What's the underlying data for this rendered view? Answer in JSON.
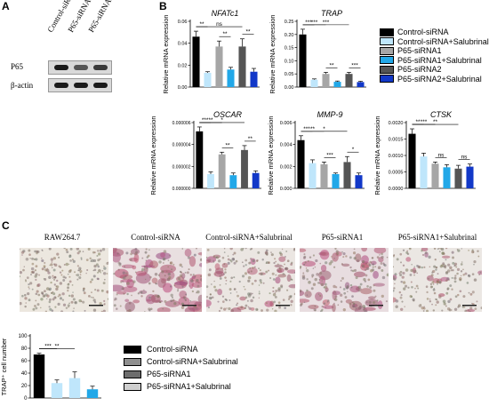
{
  "panels": {
    "a": "A",
    "b": "B",
    "c": "C"
  },
  "blot": {
    "lanes": [
      "Control-siRNA",
      "P65-siRNA1",
      "P65-siRNA2"
    ],
    "rows": [
      "P65",
      "β-actin"
    ]
  },
  "legend_b": [
    {
      "label": "Control-siRNA",
      "color": "#000000"
    },
    {
      "label": "Control-siRNA+Salubrinal",
      "color": "#bfe6fb"
    },
    {
      "label": "P65-siRNA1",
      "color": "#a6a6a6"
    },
    {
      "label": "P65-siRNA1+Salubrinal",
      "color": "#22a8e8"
    },
    {
      "label": "P65-siRNA2",
      "color": "#555555"
    },
    {
      "label": "P65-siRNA2+Salubrinal",
      "color": "#1238c8"
    }
  ],
  "micro_titles": [
    "RAW264.7",
    "Control-siRNA",
    "Control-siRNA+Salubrinal",
    "P65-siRNA1",
    "P65-siRNA1+Salubrinal"
  ],
  "legend_c": [
    {
      "label": "Control-siRNA",
      "color": "#000000"
    },
    {
      "label": "Control-siRNA+Salubrinal",
      "color": "#8f8f8f"
    },
    {
      "label": "P65-siRNA1",
      "color": "#6d6d6d"
    },
    {
      "label": "P65-siRNA1+Salubrinal",
      "color": "#cfcfcf"
    }
  ],
  "chart_data": [
    {
      "type": "bar",
      "title": "NFATc1",
      "ylabel": "Relative mRNA expression",
      "ylim": [
        0,
        0.06
      ],
      "yticks": [
        "0.00",
        "0.02",
        "0.04",
        "0.06"
      ],
      "categories": [
        "Control-siRNA",
        "Control-siRNA+Salubrinal",
        "P65-siRNA1",
        "P65-siRNA1+Salubrinal",
        "P65-siRNA2",
        "P65-siRNA2+Salubrinal"
      ],
      "values": [
        0.046,
        0.013,
        0.037,
        0.016,
        0.037,
        0.014
      ],
      "errors": [
        0.005,
        0.001,
        0.005,
        0.002,
        0.007,
        0.003
      ],
      "annotations": [
        {
          "text": "ns",
          "from": 0,
          "to": 4
        },
        {
          "text": "**",
          "from": 0,
          "to": 1
        },
        {
          "text": "**",
          "from": 2,
          "to": 3
        },
        {
          "text": "**",
          "from": 4,
          "to": 5
        }
      ]
    },
    {
      "type": "bar",
      "title": "TRAP",
      "ylabel": "Relative mRNA expression",
      "ylim": [
        0,
        0.25
      ],
      "yticks": [
        "0.00",
        "0.05",
        "0.10",
        "0.15",
        "0.20",
        "0.25"
      ],
      "categories": [
        "Control-siRNA",
        "Control-siRNA+Salubrinal",
        "P65-siRNA1",
        "P65-siRNA1+Salubrinal",
        "P65-siRNA2",
        "P65-siRNA2+Salubrinal"
      ],
      "values": [
        0.2,
        0.028,
        0.05,
        0.02,
        0.05,
        0.019
      ],
      "errors": [
        0.02,
        0.003,
        0.006,
        0.003,
        0.006,
        0.003
      ],
      "annotations": [
        {
          "text": "***",
          "from": 0,
          "to": 4
        },
        {
          "text": "***",
          "from": 0,
          "to": 2
        },
        {
          "text": "***",
          "from": 0,
          "to": 1
        },
        {
          "text": "**",
          "from": 2,
          "to": 3
        },
        {
          "text": "***",
          "from": 4,
          "to": 5
        }
      ]
    },
    {
      "type": "bar",
      "title": "OSCAR",
      "ylabel": "Relative mRNA expression",
      "ylim": [
        0,
        6e-06
      ],
      "yticks": [
        "0.000000",
        "0.000002",
        "0.000004",
        "0.000006"
      ],
      "categories": [
        "Control-siRNA",
        "Control-siRNA+Salubrinal",
        "P65-siRNA1",
        "P65-siRNA1+Salubrinal",
        "P65-siRNA2",
        "P65-siRNA2+Salubrinal"
      ],
      "values": [
        5.2e-06,
        1.3e-06,
        3.1e-06,
        1.2e-06,
        3.5e-06,
        1.4e-06
      ],
      "errors": [
        4e-07,
        2e-07,
        2e-07,
        2e-07,
        4e-07,
        2e-07
      ],
      "annotations": [
        {
          "text": "*",
          "from": 0,
          "to": 4
        },
        {
          "text": "**",
          "from": 0,
          "to": 2
        },
        {
          "text": "***",
          "from": 0,
          "to": 1
        },
        {
          "text": "**",
          "from": 2,
          "to": 3
        },
        {
          "text": "**",
          "from": 4,
          "to": 5
        }
      ]
    },
    {
      "type": "bar",
      "title": "MMP-9",
      "ylabel": "Relative mRNA expression",
      "ylim": [
        0,
        0.006
      ],
      "yticks": [
        "0.000",
        "0.002",
        "0.004",
        "0.006"
      ],
      "categories": [
        "Control-siRNA",
        "Control-siRNA+Salubrinal",
        "P65-siRNA1",
        "P65-siRNA1+Salubrinal",
        "P65-siRNA2",
        "P65-siRNA2+Salubrinal"
      ],
      "values": [
        0.0044,
        0.0023,
        0.0022,
        0.0013,
        0.0024,
        0.0012
      ],
      "errors": [
        0.0004,
        0.0003,
        0.0002,
        0.0001,
        0.0005,
        0.0002
      ],
      "annotations": [
        {
          "text": "*",
          "from": 0,
          "to": 4
        },
        {
          "text": "**",
          "from": 0,
          "to": 2
        },
        {
          "text": "***",
          "from": 0,
          "to": 1
        },
        {
          "text": "***",
          "from": 2,
          "to": 3
        },
        {
          "text": "*",
          "from": 4,
          "to": 5
        }
      ]
    },
    {
      "type": "bar",
      "title": "CTSK",
      "ylabel": "Relative mRNA expression",
      "ylim": [
        0,
        0.002
      ],
      "yticks": [
        "0.0000",
        "0.0005",
        "0.0010",
        "0.0015",
        "0.0020"
      ],
      "categories": [
        "Control-siRNA",
        "Control-siRNA+Salubrinal",
        "P65-siRNA1",
        "P65-siRNA1+Salubrinal",
        "P65-siRNA2",
        "P65-siRNA2+Salubrinal"
      ],
      "values": [
        0.00166,
        0.00097,
        0.00075,
        0.00064,
        0.0006,
        0.00066
      ],
      "errors": [
        0.00015,
        0.0001,
        5e-05,
        8e-05,
        0.0001,
        8e-05
      ],
      "annotations": [
        {
          "text": "**",
          "from": 0,
          "to": 4
        },
        {
          "text": "***",
          "from": 0,
          "to": 2
        },
        {
          "text": "**",
          "from": 0,
          "to": 1
        },
        {
          "text": "ns",
          "from": 2,
          "to": 3
        },
        {
          "text": "ns",
          "from": 4,
          "to": 5
        }
      ]
    },
    {
      "type": "bar",
      "title": "",
      "ylabel": "TRAP⁺ cell number",
      "ylim": [
        0,
        100
      ],
      "yticks": [
        "0",
        "20",
        "40",
        "60",
        "80",
        "100"
      ],
      "categories": [
        "Control-siRNA",
        "Control-siRNA+Salubrinal",
        "P65-siRNA1",
        "P65-siRNA1+Salubrinal"
      ],
      "values": [
        70,
        24,
        32,
        14
      ],
      "errors": [
        2,
        5,
        10,
        5
      ],
      "annotations": [
        {
          "text": "**",
          "from": 0,
          "to": 2
        },
        {
          "text": "***",
          "from": 0,
          "to": 1
        }
      ]
    }
  ]
}
